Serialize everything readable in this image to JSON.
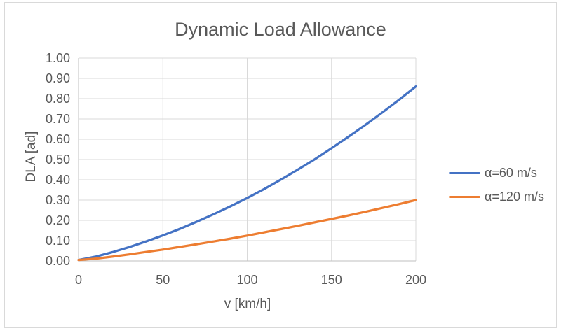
{
  "chart_data": {
    "type": "line",
    "title": "Dynamic Load Allowance",
    "xlabel": "v [km/h]",
    "ylabel": "DLA [ad]",
    "x": [
      0,
      10,
      20,
      30,
      40,
      50,
      60,
      70,
      80,
      90,
      100,
      110,
      120,
      130,
      140,
      150,
      160,
      170,
      180,
      190,
      200
    ],
    "series": [
      {
        "name": "α=60 m/s",
        "color": "#4472C4",
        "values": [
          0.005,
          0.021,
          0.043,
          0.068,
          0.096,
          0.126,
          0.158,
          0.193,
          0.23,
          0.269,
          0.31,
          0.354,
          0.401,
          0.45,
          0.501,
          0.556,
          0.612,
          0.67,
          0.731,
          0.794,
          0.86
        ]
      },
      {
        "name": "α=120 m/s",
        "color": "#ED7D31",
        "values": [
          0.005,
          0.011,
          0.021,
          0.032,
          0.044,
          0.056,
          0.069,
          0.082,
          0.096,
          0.11,
          0.125,
          0.141,
          0.157,
          0.173,
          0.19,
          0.207,
          0.224,
          0.242,
          0.261,
          0.28,
          0.3
        ]
      }
    ],
    "xlim": [
      0,
      200
    ],
    "ylim": [
      0.0,
      1.0
    ],
    "x_ticks": [
      0,
      50,
      100,
      150,
      200
    ],
    "x_tick_labels": [
      "0",
      "50",
      "100",
      "150",
      "200"
    ],
    "y_ticks": [
      0.0,
      0.1,
      0.2,
      0.3,
      0.4,
      0.5,
      0.6,
      0.7,
      0.8,
      0.9,
      1.0
    ],
    "y_tick_labels": [
      "0.00",
      "0.10",
      "0.20",
      "0.30",
      "0.40",
      "0.50",
      "0.60",
      "0.70",
      "0.80",
      "0.90",
      "1.00"
    ],
    "grid": true,
    "legend_position": "right",
    "style": {
      "background": "#FFFFFF",
      "border_color": "#D9D9D9",
      "grid_color": "#D9D9D9",
      "axis_color": "#BFBFBF",
      "text_color": "#595959",
      "line_width": 3.25
    }
  }
}
